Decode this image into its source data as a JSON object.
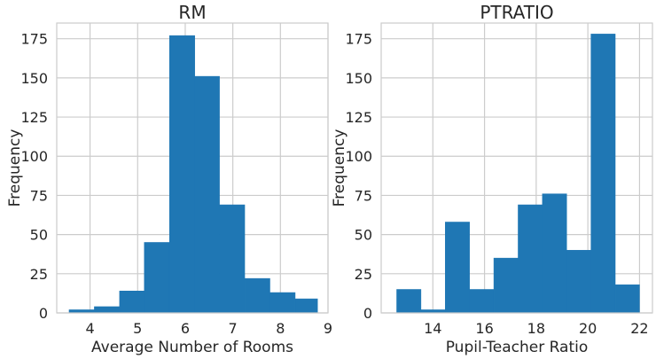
{
  "chart_data": [
    {
      "type": "bar",
      "title": "RM",
      "xlabel": "Average Number of Rooms",
      "ylabel": "Frequency",
      "color": "#1f77b4",
      "xlim": [
        3.3,
        9.0
      ],
      "ylim": [
        0,
        185
      ],
      "xticks": [
        4,
        5,
        6,
        7,
        8,
        9
      ],
      "yticks": [
        0,
        25,
        50,
        75,
        100,
        125,
        150,
        175
      ],
      "grid": true,
      "bins": [
        {
          "x0": 3.56,
          "x1": 4.09,
          "value": 2
        },
        {
          "x0": 4.09,
          "x1": 4.62,
          "value": 4
        },
        {
          "x0": 4.62,
          "x1": 5.14,
          "value": 14
        },
        {
          "x0": 5.14,
          "x1": 5.67,
          "value": 45
        },
        {
          "x0": 5.67,
          "x1": 6.2,
          "value": 177
        },
        {
          "x0": 6.2,
          "x1": 6.72,
          "value": 151
        },
        {
          "x0": 6.72,
          "x1": 7.25,
          "value": 69
        },
        {
          "x0": 7.25,
          "x1": 7.78,
          "value": 22
        },
        {
          "x0": 7.78,
          "x1": 8.31,
          "value": 13
        },
        {
          "x0": 8.31,
          "x1": 8.78,
          "value": 9
        }
      ]
    },
    {
      "type": "bar",
      "title": "PTRATIO",
      "xlabel": "Pupil-Teacher Ratio",
      "ylabel": "Frequency",
      "color": "#1f77b4",
      "xlim": [
        12.0,
        22.5
      ],
      "ylim": [
        0,
        185
      ],
      "xticks": [
        14,
        16,
        18,
        20,
        22
      ],
      "yticks": [
        0,
        25,
        50,
        75,
        100,
        125,
        150,
        175
      ],
      "grid": true,
      "bins": [
        {
          "x0": 12.6,
          "x1": 13.54,
          "value": 15
        },
        {
          "x0": 13.54,
          "x1": 14.48,
          "value": 2
        },
        {
          "x0": 14.48,
          "x1": 15.42,
          "value": 58
        },
        {
          "x0": 15.42,
          "x1": 16.36,
          "value": 15
        },
        {
          "x0": 16.36,
          "x1": 17.3,
          "value": 35
        },
        {
          "x0": 17.3,
          "x1": 18.24,
          "value": 69
        },
        {
          "x0": 18.24,
          "x1": 19.18,
          "value": 76
        },
        {
          "x0": 19.18,
          "x1": 20.12,
          "value": 40
        },
        {
          "x0": 20.12,
          "x1": 21.06,
          "value": 178
        },
        {
          "x0": 21.06,
          "x1": 22.0,
          "value": 18
        }
      ]
    }
  ]
}
